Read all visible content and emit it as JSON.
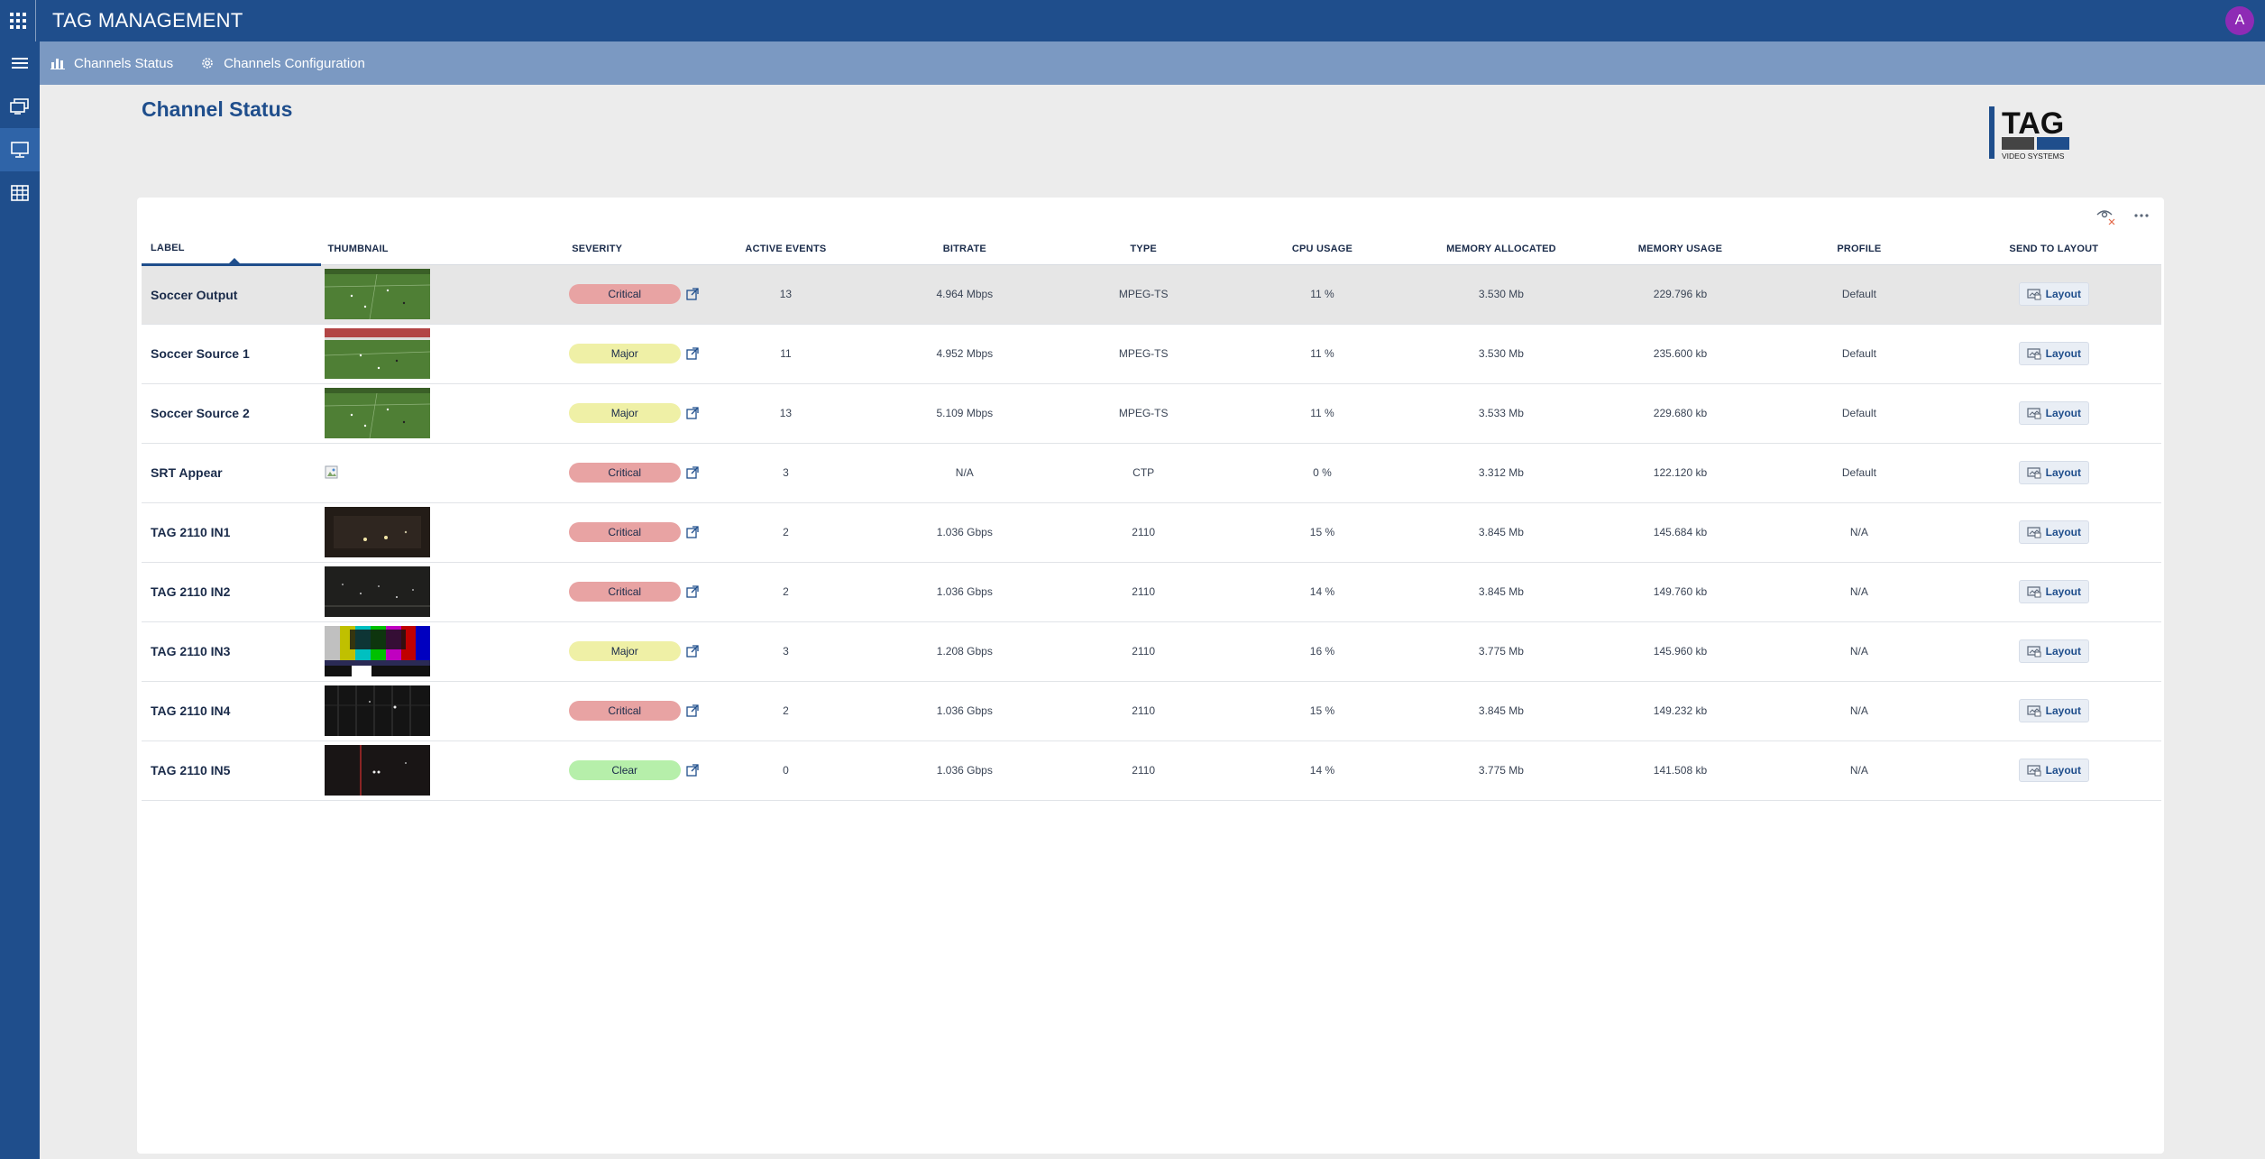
{
  "app": {
    "title": "TAG MANAGEMENT",
    "avatar_initial": "A"
  },
  "nav": {
    "tabs": [
      {
        "label": "Channels Status",
        "icon": "bar-chart-icon"
      },
      {
        "label": "Channels Configuration",
        "icon": "gear-icon"
      }
    ]
  },
  "page": {
    "title": "Channel Status"
  },
  "logo": {
    "text": "TAG",
    "subtext": "VIDEO SYSTEMS"
  },
  "table": {
    "columns": {
      "label": "LABEL",
      "thumbnail": "THUMBNAIL",
      "severity": "SEVERITY",
      "active_events": "ACTIVE EVENTS",
      "bitrate": "BITRATE",
      "type": "TYPE",
      "cpu_usage": "CPU USAGE",
      "memory_allocated": "MEMORY ALLOCATED",
      "memory_usage": "MEMORY USAGE",
      "profile": "PROFILE",
      "send_to_layout": "SEND TO LAYOUT"
    },
    "layout_button_label": "Layout",
    "rows": [
      {
        "label": "Soccer Output",
        "thumb": "soccer",
        "severity": "Critical",
        "active_events": "13",
        "bitrate": "4.964 Mbps",
        "type": "MPEG-TS",
        "cpu_usage": "11 %",
        "memory_allocated": "3.530 Mb",
        "memory_usage": "229.796 kb",
        "profile": "Default"
      },
      {
        "label": "Soccer Source 1",
        "thumb": "soccer-stadium",
        "severity": "Major",
        "active_events": "11",
        "bitrate": "4.952 Mbps",
        "type": "MPEG-TS",
        "cpu_usage": "11 %",
        "memory_allocated": "3.530 Mb",
        "memory_usage": "235.600 kb",
        "profile": "Default"
      },
      {
        "label": "Soccer Source 2",
        "thumb": "soccer",
        "severity": "Major",
        "active_events": "13",
        "bitrate": "5.109 Mbps",
        "type": "MPEG-TS",
        "cpu_usage": "11 %",
        "memory_allocated": "3.533 Mb",
        "memory_usage": "229.680 kb",
        "profile": "Default"
      },
      {
        "label": "SRT Appear",
        "thumb": "broken",
        "severity": "Critical",
        "active_events": "3",
        "bitrate": "N/A",
        "type": "CTP",
        "cpu_usage": "0 %",
        "memory_allocated": "3.312 Mb",
        "memory_usage": "122.120 kb",
        "profile": "Default"
      },
      {
        "label": "TAG 2110 IN1",
        "thumb": "dark",
        "severity": "Critical",
        "active_events": "2",
        "bitrate": "1.036 Gbps",
        "type": "2110",
        "cpu_usage": "15 %",
        "memory_allocated": "3.845 Mb",
        "memory_usage": "145.684 kb",
        "profile": "N/A"
      },
      {
        "label": "TAG 2110 IN2",
        "thumb": "dark-crowd",
        "severity": "Critical",
        "active_events": "2",
        "bitrate": "1.036 Gbps",
        "type": "2110",
        "cpu_usage": "14 %",
        "memory_allocated": "3.845 Mb",
        "memory_usage": "149.760 kb",
        "profile": "N/A"
      },
      {
        "label": "TAG 2110 IN3",
        "thumb": "colorbars",
        "severity": "Major",
        "active_events": "3",
        "bitrate": "1.208 Gbps",
        "type": "2110",
        "cpu_usage": "16 %",
        "memory_allocated": "3.775 Mb",
        "memory_usage": "145.960 kb",
        "profile": "N/A"
      },
      {
        "label": "TAG 2110 IN4",
        "thumb": "dark-lines",
        "severity": "Critical",
        "active_events": "2",
        "bitrate": "1.036 Gbps",
        "type": "2110",
        "cpu_usage": "15 %",
        "memory_allocated": "3.845 Mb",
        "memory_usage": "149.232 kb",
        "profile": "N/A"
      },
      {
        "label": "TAG 2110 IN5",
        "thumb": "dark-red",
        "severity": "Clear",
        "active_events": "0",
        "bitrate": "1.036 Gbps",
        "type": "2110",
        "cpu_usage": "14 %",
        "memory_allocated": "3.775 Mb",
        "memory_usage": "141.508 kb",
        "profile": "N/A"
      }
    ]
  },
  "colors": {
    "topbar": "#1f4e8c",
    "subbar": "#7b99c2",
    "critical": "#e8a3a3",
    "major": "#eff0a6",
    "clear": "#b6efaa",
    "avatar": "#8e2bb5"
  }
}
